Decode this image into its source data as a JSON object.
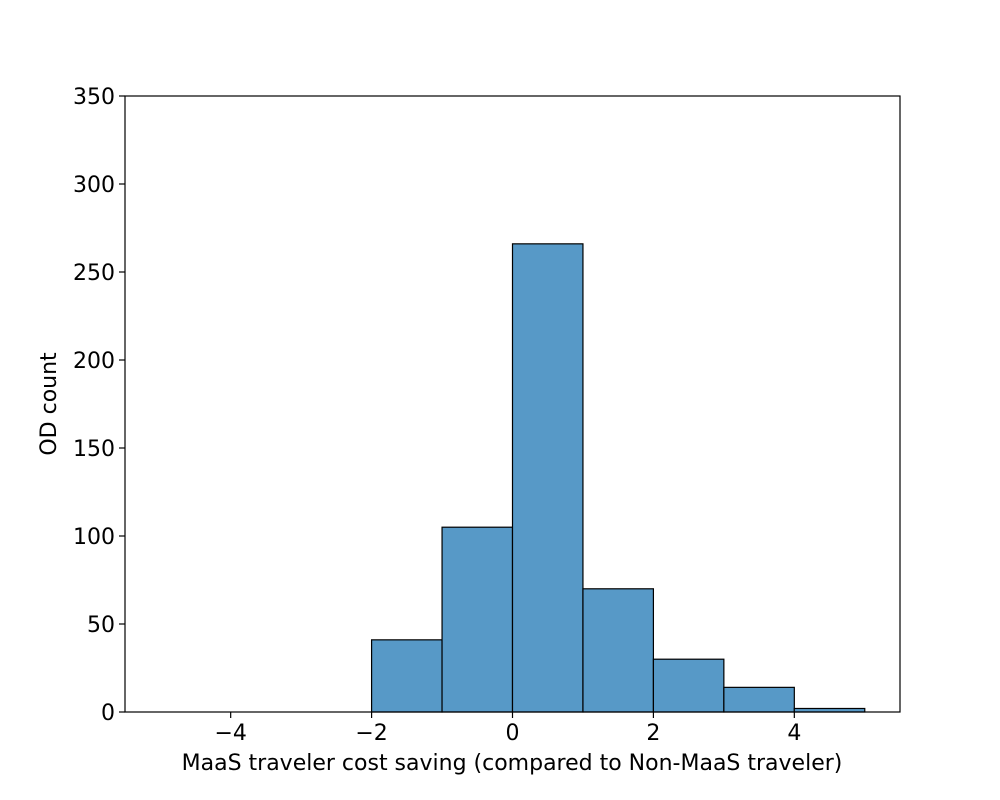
{
  "chart_data": {
    "type": "bar",
    "title": "",
    "xlabel": "MaaS traveler cost saving (compared to Non-MaaS traveler)",
    "ylabel": "OD count",
    "bins": [
      {
        "x0": -5,
        "x1": -4,
        "count": 0
      },
      {
        "x0": -4,
        "x1": -3,
        "count": 0
      },
      {
        "x0": -3,
        "x1": -2,
        "count": 0
      },
      {
        "x0": -2,
        "x1": -1,
        "count": 41
      },
      {
        "x0": -1,
        "x1": 0,
        "count": 105
      },
      {
        "x0": 0,
        "x1": 1,
        "count": 266
      },
      {
        "x0": 1,
        "x1": 2,
        "count": 70
      },
      {
        "x0": 2,
        "x1": 3,
        "count": 30
      },
      {
        "x0": 3,
        "x1": 4,
        "count": 14
      },
      {
        "x0": 4,
        "x1": 5,
        "count": 2
      }
    ],
    "xlim": [
      -5.5,
      5.5
    ],
    "ylim": [
      0,
      350
    ],
    "xticks": [
      -4,
      -2,
      0,
      2,
      4
    ],
    "xtick_labels": [
      "−4",
      "−2",
      "0",
      "2",
      "4"
    ],
    "yticks": [
      0,
      50,
      100,
      150,
      200,
      250,
      300,
      350
    ],
    "ytick_labels": [
      "0",
      "50",
      "100",
      "150",
      "200",
      "250",
      "300",
      "350"
    ],
    "grid": false,
    "legend": "none",
    "bar_color": "#5799c7",
    "edge_color": "#000000"
  }
}
